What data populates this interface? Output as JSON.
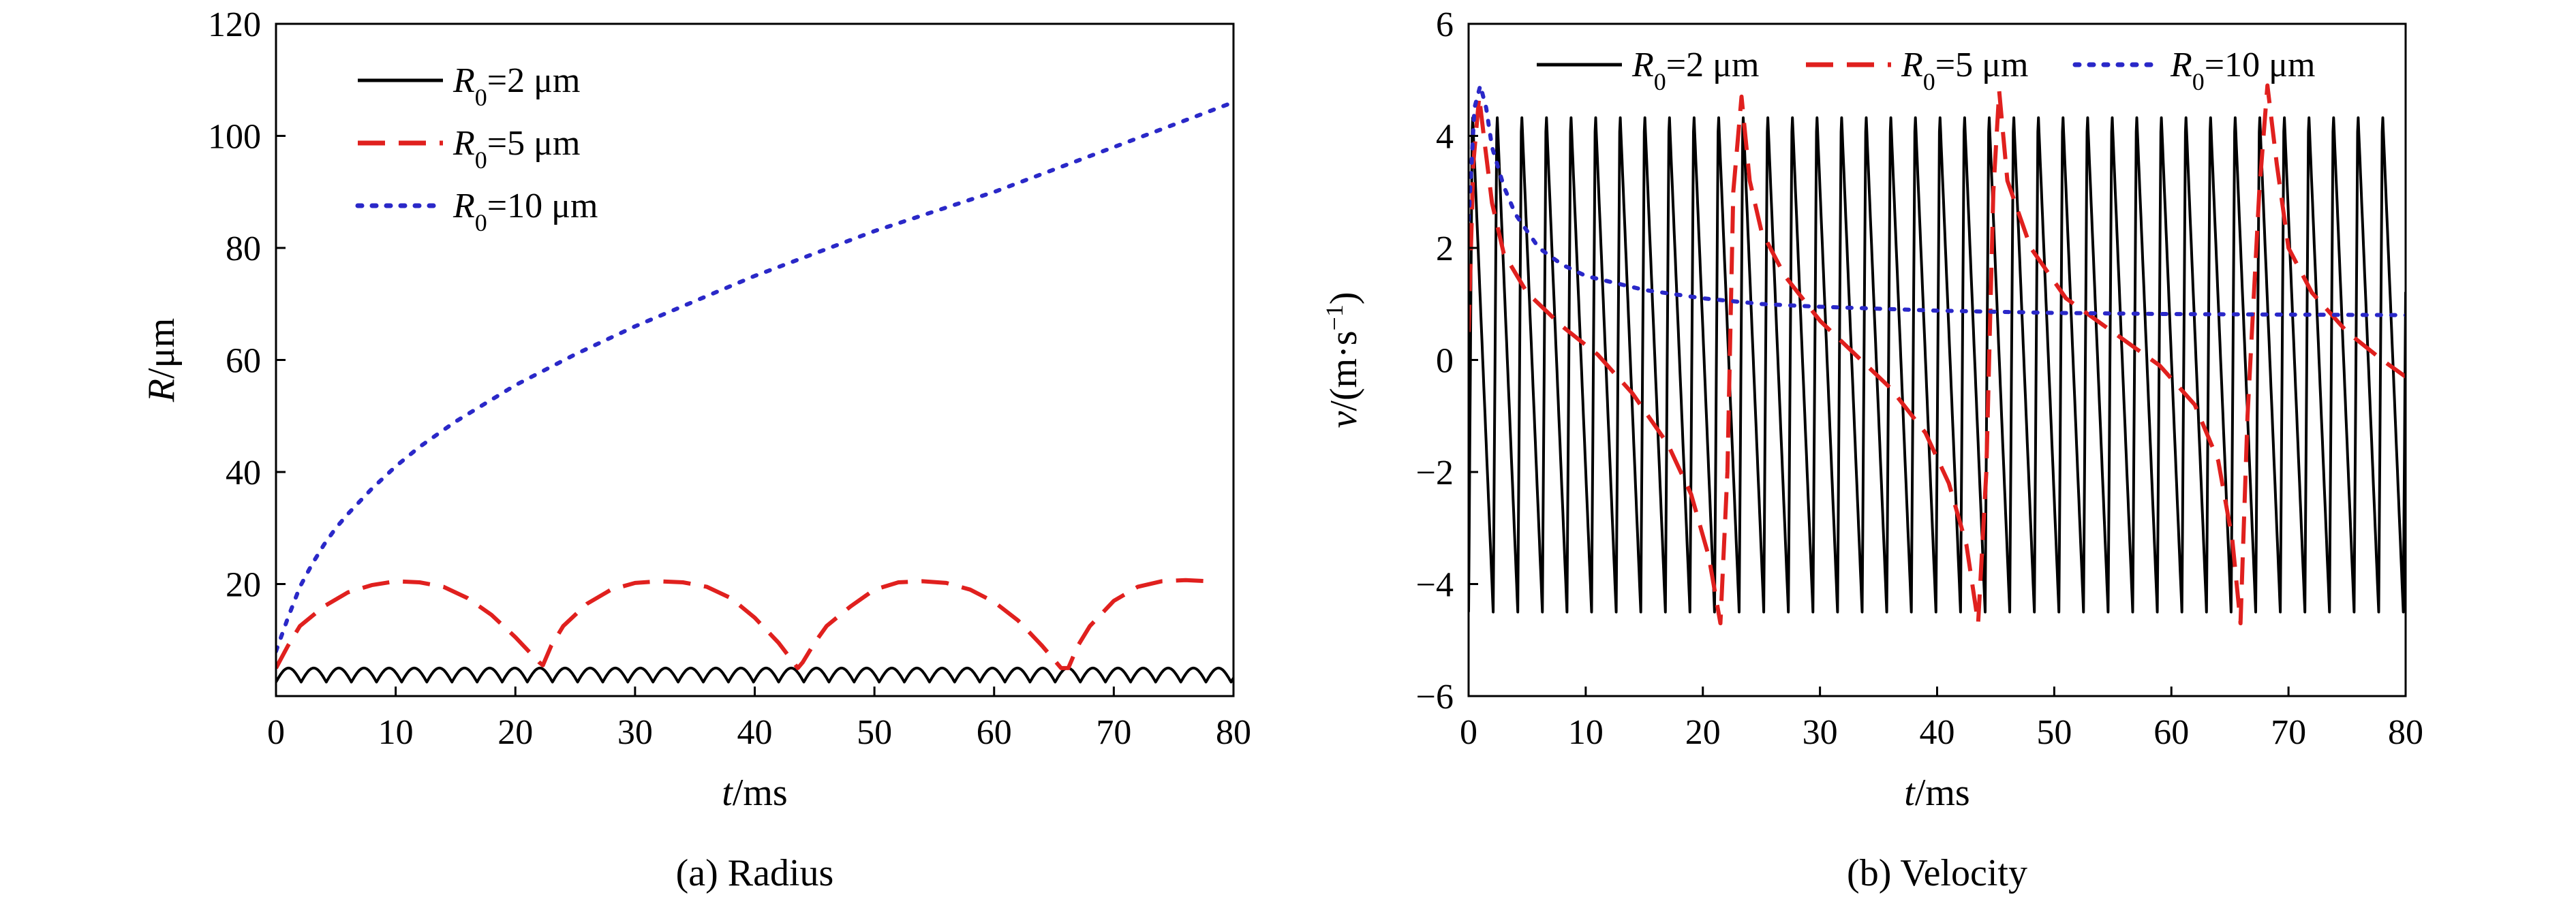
{
  "chart_data": [
    {
      "type": "line",
      "caption": "(a) Radius",
      "xlabel_var": "t",
      "xlabel_unit": "/ms",
      "ylabel_var": "R",
      "ylabel_unit": "/μm",
      "xlim": [
        0,
        80
      ],
      "ylim": [
        0,
        120
      ],
      "xticks": [
        0,
        10,
        20,
        30,
        40,
        50,
        60,
        70,
        80
      ],
      "yticks": [
        20,
        40,
        60,
        80,
        100,
        120
      ],
      "legend_position": "top-left",
      "series": [
        {
          "name_var": "R",
          "name_sub": "0",
          "name_rest": "=2 μm",
          "color": "#000000",
          "style": "solid",
          "oscillation": {
            "period_ms": 2.1,
            "min": 2.5,
            "max": 5.0
          }
        },
        {
          "name_var": "R",
          "name_sub": "0",
          "name_rest": "=5 μm",
          "color": "#e0201e",
          "style": "dashed",
          "x": [
            0,
            1,
            2,
            4,
            6,
            8,
            10,
            12,
            14,
            16,
            18,
            20,
            22,
            22.3,
            23,
            24,
            26,
            28,
            30,
            32,
            34,
            36,
            38,
            40,
            42,
            43.6,
            44,
            45,
            46,
            48,
            50,
            52,
            54,
            56,
            58,
            60,
            62,
            64,
            65.6,
            66.2,
            67,
            68,
            70,
            72,
            74,
            76,
            78
          ],
          "y": [
            5,
            9,
            12.5,
            16,
            18.5,
            19.8,
            20.5,
            20.3,
            19.5,
            17.5,
            14.5,
            10.5,
            6,
            5.5,
            9,
            12.5,
            16.5,
            19,
            20.2,
            20.5,
            20.3,
            19.5,
            17.5,
            14,
            9.5,
            5,
            6,
            9.5,
            12.5,
            16,
            19,
            20.3,
            20.5,
            20.2,
            19,
            16.8,
            13.5,
            9,
            5,
            5,
            9,
            12.5,
            17,
            19.5,
            20.5,
            20.7,
            20.5
          ]
        },
        {
          "name_var": "R",
          "name_sub": "0",
          "name_rest": "=10 μm",
          "color": "#2a28c8",
          "style": "dotted",
          "x": [
            0,
            0.5,
            1,
            2,
            3,
            4,
            5,
            6,
            8,
            10,
            12,
            15,
            20,
            25,
            30,
            35,
            40,
            45,
            50,
            55,
            60,
            65,
            70,
            75,
            80
          ],
          "y": [
            8,
            11,
            14,
            19.5,
            23.5,
            27,
            30,
            32.5,
            37,
            41,
            44.5,
            49,
            55.5,
            61,
            66,
            70.5,
            75,
            79,
            83,
            86.5,
            90,
            94,
            98,
            102,
            106
          ]
        }
      ]
    },
    {
      "type": "line",
      "caption": "(b) Velocity",
      "xlabel_var": "t",
      "xlabel_unit": "/ms",
      "ylabel_var": "v",
      "ylabel_unit": "/(m·s",
      "ylabel_sup": "−1",
      "ylabel_close": ")",
      "xlim": [
        0,
        80
      ],
      "ylim": [
        -6,
        6
      ],
      "xticks": [
        0,
        10,
        20,
        30,
        40,
        50,
        60,
        70,
        80
      ],
      "yticks": [
        -6,
        -4,
        -2,
        0,
        2,
        4,
        6
      ],
      "ytick_labels": [
        "−6",
        "−4",
        "−2",
        "0",
        "2",
        "4",
        "6"
      ],
      "legend_position": "top",
      "series": [
        {
          "name_var": "R",
          "name_sub": "0",
          "name_rest": "=2 μm",
          "color": "#000000",
          "style": "solid",
          "oscillation": {
            "period_ms": 2.1,
            "min": -4.5,
            "max": 4.5
          }
        },
        {
          "name_var": "R",
          "name_sub": "0",
          "name_rest": "=5 μm",
          "color": "#e0201e",
          "style": "dashed",
          "x": [
            0,
            0.4,
            0.9,
            1.3,
            2,
            3,
            5,
            8,
            11,
            14,
            17,
            19,
            20.5,
            21.5,
            22.1,
            22.6,
            23.3,
            24,
            25,
            27,
            30,
            33,
            36,
            39,
            41,
            42.5,
            43.5,
            44.2,
            44.8,
            45.3,
            46,
            48,
            51,
            55,
            59,
            62,
            64,
            65.2,
            65.9,
            66.5,
            67.5,
            68.2,
            69,
            70,
            72,
            75,
            78,
            80
          ],
          "y": [
            0.5,
            3.5,
            4.7,
            4.0,
            2.8,
            1.9,
            1.2,
            0.6,
            0.1,
            -0.6,
            -1.5,
            -2.4,
            -3.5,
            -4.7,
            -2.0,
            3.0,
            4.7,
            3.2,
            2.3,
            1.5,
            0.7,
            0.1,
            -0.5,
            -1.3,
            -2.2,
            -3.3,
            -4.7,
            -2.0,
            3.0,
            4.8,
            3.2,
            2.0,
            1.1,
            0.5,
            -0.1,
            -0.8,
            -1.8,
            -3.2,
            -4.7,
            -1.0,
            3.0,
            4.9,
            3.5,
            2.0,
            1.2,
            0.5,
            0,
            -0.3
          ]
        },
        {
          "name_var": "R",
          "name_sub": "0",
          "name_rest": "=10 μm",
          "color": "#2a28c8",
          "style": "dotted",
          "x": [
            0,
            0.5,
            1,
            1.5,
            2,
            3,
            4,
            5,
            6,
            8,
            10,
            12,
            15,
            20,
            25,
            30,
            40,
            50,
            60,
            70,
            80
          ],
          "y": [
            2.5,
            4.5,
            4.9,
            4.5,
            3.8,
            3.1,
            2.6,
            2.3,
            2.0,
            1.7,
            1.5,
            1.4,
            1.25,
            1.1,
            1.0,
            0.95,
            0.88,
            0.84,
            0.82,
            0.81,
            0.8
          ]
        }
      ]
    }
  ]
}
